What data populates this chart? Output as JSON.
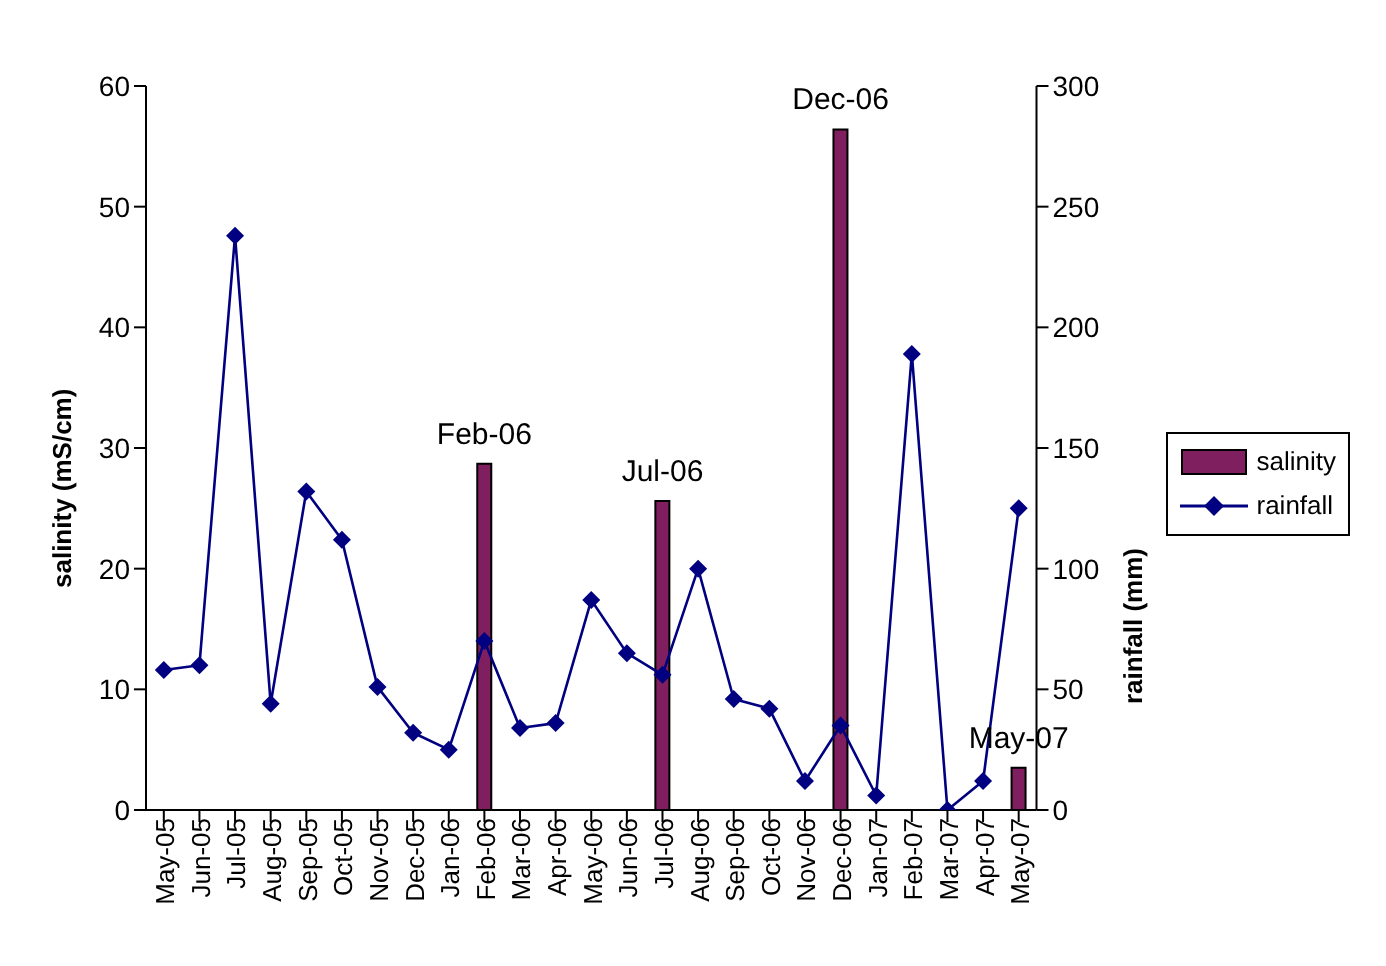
{
  "chart_data": {
    "type": "bar",
    "categories": [
      "May-05",
      "Jun-05",
      "Jul-05",
      "Aug-05",
      "Sep-05",
      "Oct-05",
      "Nov-05",
      "Dec-05",
      "Jan-06",
      "Feb-06",
      "Mar-06",
      "Apr-06",
      "May-06",
      "Jun-06",
      "Jul-06",
      "Aug-06",
      "Sep-06",
      "Oct-06",
      "Nov-06",
      "Dec-06",
      "Jan-07",
      "Feb-07",
      "Mar-07",
      "Apr-07",
      "May-07"
    ],
    "series": [
      {
        "name": "salinity",
        "color": "#7f1f5f",
        "values": [
          null,
          null,
          null,
          null,
          null,
          null,
          null,
          null,
          null,
          28.7,
          null,
          null,
          null,
          null,
          25.6,
          null,
          null,
          null,
          null,
          56.4,
          null,
          null,
          null,
          null,
          3.5
        ]
      },
      {
        "name": "rainfall",
        "type": "line",
        "axis": "y2",
        "color": "#000080",
        "marker": "diamond",
        "values": [
          58,
          60,
          238,
          44,
          132,
          112,
          51,
          32,
          25,
          70,
          34,
          36,
          87,
          65,
          56,
          100,
          46,
          42,
          12,
          35,
          6,
          189,
          0,
          12,
          125
        ]
      }
    ],
    "ylabel": "salinity  (mS/cm)",
    "y2label": "rainfall (mm)",
    "ylim": [
      0,
      60
    ],
    "yticks": [
      0,
      10,
      20,
      30,
      40,
      50,
      60
    ],
    "y2lim": [
      0,
      300
    ],
    "y2ticks": [
      0,
      50,
      100,
      150,
      200,
      250,
      300
    ],
    "annotations": [
      {
        "text": "Feb-06",
        "x": "Feb-06",
        "y": 28.7
      },
      {
        "text": "Jul-06",
        "x": "Jul-06",
        "y": 25.6
      },
      {
        "text": "Dec-06",
        "x": "Dec-06",
        "y": 56.4
      },
      {
        "text": "May-07",
        "x": "May-07",
        "y": 3.5
      }
    ],
    "grid": false,
    "legend": "right"
  }
}
